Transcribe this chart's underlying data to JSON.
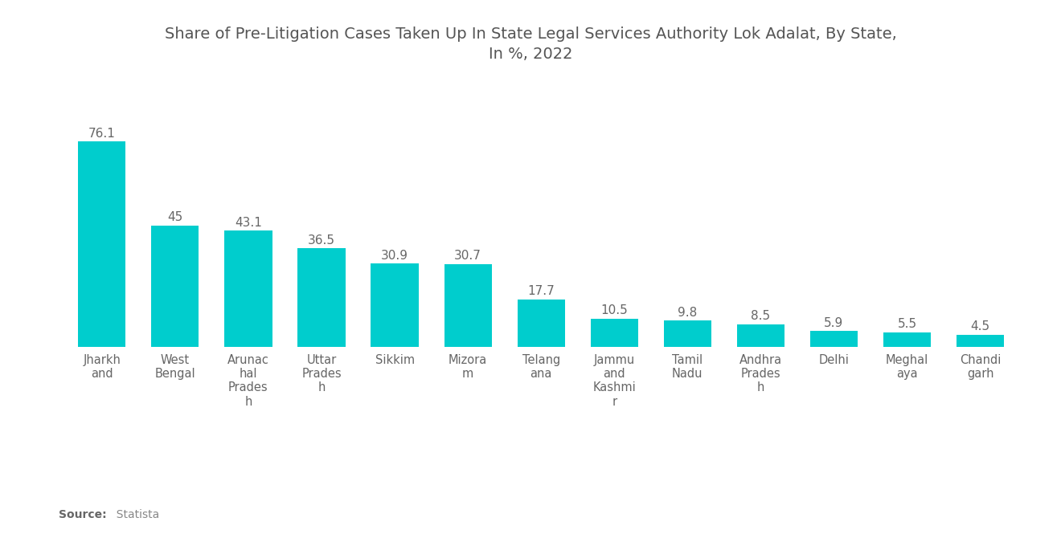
{
  "title": "Share of Pre-Litigation Cases Taken Up In State Legal Services Authority Lok Adalat, By State,\nIn %, 2022",
  "categories": [
    "Jharkh\nand",
    "West\nBengal",
    "Arunac\nhal\nPrades\nh",
    "Uttar\nPrades\nh",
    "Sikkim",
    "Mizora\nm",
    "Telang\nana",
    "Jammu\nand\nKashmi\nr",
    "Tamil\nNadu",
    "Andhra\nPrades\nh",
    "Delhi",
    "Meghal\naya",
    "Chandi\ngarh"
  ],
  "values": [
    76.1,
    45,
    43.1,
    36.5,
    30.9,
    30.7,
    17.7,
    10.5,
    9.8,
    8.5,
    5.9,
    5.5,
    4.5
  ],
  "bar_color": "#00CDCD",
  "background_color": "#ffffff",
  "title_color": "#555555",
  "label_color": "#666666",
  "source_bold": "Source:",
  "source_rest": "  Statista",
  "ylim": [
    0,
    85
  ],
  "bar_width": 0.65,
  "value_labels": [
    "76.1",
    "45",
    "43.1",
    "36.5",
    "30.9",
    "30.7",
    "17.7",
    "10.5",
    "9.8",
    "8.5",
    "5.9",
    "5.5",
    "4.5"
  ],
  "title_fontsize": 14,
  "label_fontsize": 11,
  "tick_fontsize": 10.5
}
